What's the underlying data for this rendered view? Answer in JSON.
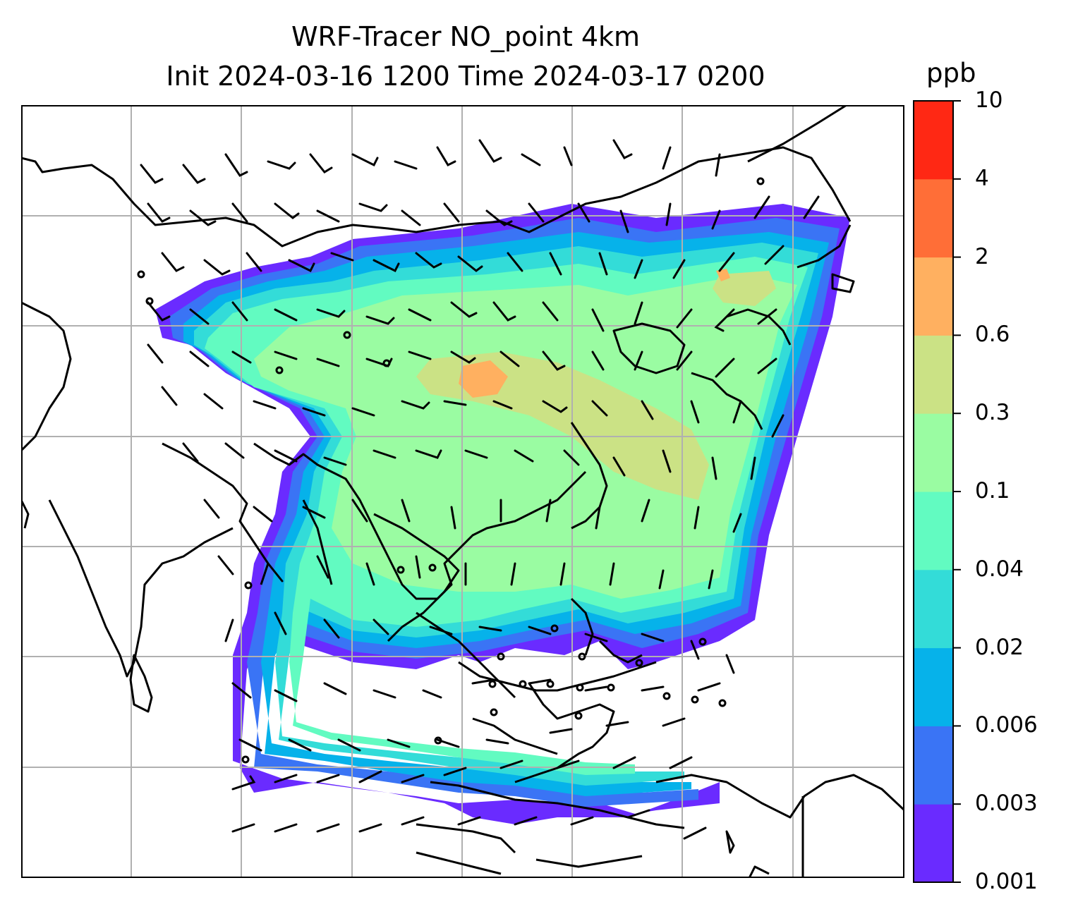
{
  "title": {
    "line1": "WRF-Tracer NO_point 4km",
    "line2": "Init 2024-03-16 1200 Time 2024-03-17 0200"
  },
  "colorbar": {
    "unit": "ppb",
    "ticks": [
      "0.001",
      "0.003",
      "0.006",
      "0.02",
      "0.04",
      "0.1",
      "0.3",
      "0.6",
      "2",
      "4",
      "10"
    ],
    "colors": [
      "#6a2bff",
      "#3a74f5",
      "#06b2ea",
      "#33dcd8",
      "#62fbc1",
      "#9afca2",
      "#cbe285",
      "#ffb060",
      "#ff6e37",
      "#ff2814"
    ]
  },
  "map": {
    "field": "NO_point tracer concentration",
    "background": "#ffffff",
    "coastline_color": "#000000",
    "gridline_color": "#b0b0b0",
    "barb_color": "#000000"
  }
}
